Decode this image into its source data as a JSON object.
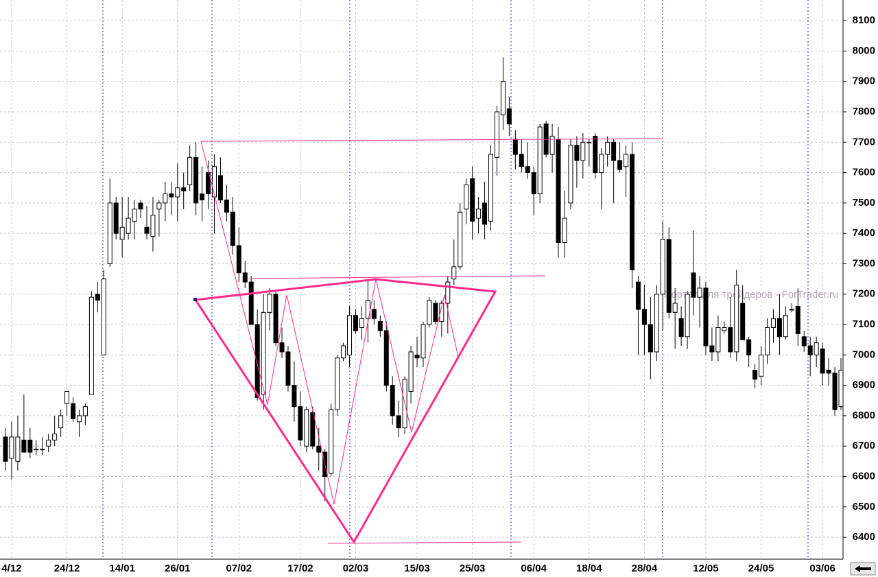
{
  "chart_data": {
    "type": "candlestick",
    "watermark": "Портал для трейдеров - ForTrader.ru",
    "categories": [
      null,
      "4/12",
      null,
      null,
      null,
      null,
      null,
      null,
      null,
      null,
      "24/12",
      null,
      null,
      null,
      null,
      null,
      null,
      null,
      null,
      "14/01",
      null,
      null,
      null,
      null,
      null,
      null,
      null,
      null,
      "26/01",
      null,
      null,
      null,
      null,
      null,
      null,
      null,
      null,
      null,
      "07/02",
      null,
      null,
      null,
      null,
      null,
      null,
      null,
      null,
      null,
      "17/02",
      null,
      null,
      null,
      null,
      null,
      null,
      null,
      null,
      "02/03",
      null,
      null,
      null,
      null,
      null,
      null,
      null,
      null,
      null,
      "15/03",
      null,
      null,
      null,
      null,
      null,
      null,
      null,
      null,
      "25/03",
      null,
      null,
      null,
      null,
      null,
      null,
      null,
      null,
      null,
      "06/04",
      null,
      null,
      null,
      null,
      null,
      null,
      null,
      null,
      "18/04",
      null,
      null,
      null,
      null,
      null,
      null,
      null,
      null,
      "28/04",
      null,
      null,
      null,
      null,
      null,
      null,
      null,
      null,
      null,
      "12/05",
      null,
      null,
      null,
      null,
      null,
      null,
      null,
      null,
      "24/05",
      null,
      null,
      null,
      null,
      null,
      null,
      null,
      null,
      null,
      "03/06",
      null,
      null,
      null
    ],
    "ohlc": [
      [
        6730,
        6760,
        6620,
        6650
      ],
      [
        6660,
        6780,
        6590,
        6730
      ],
      [
        6650,
        6800,
        6620,
        6730
      ],
      [
        6720,
        6870,
        6680,
        6680
      ],
      [
        6720,
        6760,
        6660,
        6680
      ],
      [
        6690,
        6720,
        6670,
        6690
      ],
      [
        6690,
        6730,
        6670,
        6690
      ],
      [
        6700,
        6740,
        6680,
        6720
      ],
      [
        6720,
        6800,
        6700,
        6740
      ],
      [
        6760,
        6820,
        6730,
        6800
      ],
      [
        6840,
        6880,
        6800,
        6880
      ],
      [
        6840,
        6860,
        6780,
        6790
      ],
      [
        6780,
        6820,
        6730,
        6800
      ],
      [
        6800,
        6840,
        6770,
        6830
      ],
      [
        6870,
        7210,
        6870,
        7190
      ],
      [
        7200,
        7240,
        7140,
        7180
      ],
      [
        7000,
        7280,
        7000,
        7250
      ],
      [
        7300,
        7580,
        7290,
        7500
      ],
      [
        7500,
        7520,
        7380,
        7400
      ],
      [
        7380,
        7520,
        7320,
        7420
      ],
      [
        7400,
        7520,
        7380,
        7450
      ],
      [
        7440,
        7510,
        7380,
        7480
      ],
      [
        7500,
        7510,
        7450,
        7480
      ],
      [
        7420,
        7490,
        7380,
        7400
      ],
      [
        7390,
        7520,
        7340,
        7460
      ],
      [
        7480,
        7510,
        7390,
        7500
      ],
      [
        7500,
        7570,
        7440,
        7530
      ],
      [
        7530,
        7570,
        7460,
        7520
      ],
      [
        7520,
        7630,
        7440,
        7550
      ],
      [
        7550,
        7600,
        7480,
        7540
      ],
      [
        7560,
        7690,
        7540,
        7650
      ],
      [
        7650,
        7700,
        7460,
        7500
      ],
      [
        7530,
        7620,
        7440,
        7510
      ],
      [
        7600,
        7640,
        7480,
        7530
      ],
      [
        7520,
        7660,
        7400,
        7620
      ],
      [
        7590,
        7650,
        7500,
        7510
      ],
      [
        7510,
        7560,
        7440,
        7470
      ],
      [
        7470,
        7520,
        7330,
        7360
      ],
      [
        7360,
        7420,
        7240,
        7270
      ],
      [
        7270,
        7310,
        7220,
        7240
      ],
      [
        7240,
        7260,
        7100,
        7100
      ],
      [
        7100,
        7150,
        6850,
        6860
      ],
      [
        6870,
        7200,
        6820,
        7140
      ],
      [
        7140,
        7220,
        7080,
        7200
      ],
      [
        7200,
        7210,
        7030,
        7040
      ],
      [
        7040,
        7090,
        6990,
        7010
      ],
      [
        7010,
        7030,
        6880,
        6900
      ],
      [
        6900,
        6980,
        6780,
        6830
      ],
      [
        6830,
        6880,
        6700,
        6720
      ],
      [
        6700,
        6830,
        6680,
        6820
      ],
      [
        6810,
        6830,
        6690,
        6700
      ],
      [
        6700,
        6760,
        6620,
        6680
      ],
      [
        6680,
        6690,
        6520,
        6600
      ],
      [
        6610,
        6840,
        6600,
        6820
      ],
      [
        6820,
        7000,
        6800,
        6990
      ],
      [
        6990,
        7040,
        6980,
        7030
      ],
      [
        7000,
        7160,
        6960,
        7130
      ],
      [
        7130,
        7150,
        7070,
        7080
      ],
      [
        7090,
        7160,
        7050,
        7120
      ],
      [
        7120,
        7250,
        7040,
        7180
      ],
      [
        7150,
        7180,
        7100,
        7120
      ],
      [
        7110,
        7130,
        7060,
        7080
      ],
      [
        7080,
        7110,
        6880,
        6900
      ],
      [
        6900,
        6930,
        6770,
        6800
      ],
      [
        6800,
        6850,
        6730,
        6760
      ],
      [
        6760,
        6930,
        6740,
        6920
      ],
      [
        6880,
        7030,
        6840,
        7010
      ],
      [
        7000,
        7060,
        6960,
        6990
      ],
      [
        6990,
        7110,
        6960,
        7100
      ],
      [
        7100,
        7190,
        7090,
        7180
      ],
      [
        7170,
        7180,
        7100,
        7110
      ],
      [
        7110,
        7180,
        7060,
        7170
      ],
      [
        7170,
        7260,
        7070,
        7240
      ],
      [
        7250,
        7380,
        7230,
        7290
      ],
      [
        7290,
        7500,
        7280,
        7470
      ],
      [
        7480,
        7580,
        7430,
        7560
      ],
      [
        7580,
        7620,
        7380,
        7440
      ],
      [
        7450,
        7520,
        7400,
        7480
      ],
      [
        7500,
        7570,
        7380,
        7430
      ],
      [
        7440,
        7690,
        7410,
        7660
      ],
      [
        7650,
        7820,
        7590,
        7800
      ],
      [
        7790,
        7980,
        7740,
        7900
      ],
      [
        7810,
        7850,
        7720,
        7760
      ],
      [
        7710,
        7740,
        7610,
        7660
      ],
      [
        7660,
        7710,
        7600,
        7620
      ],
      [
        7620,
        7700,
        7580,
        7600
      ],
      [
        7600,
        7620,
        7460,
        7530
      ],
      [
        7530,
        7760,
        7500,
        7750
      ],
      [
        7760,
        7770,
        7650,
        7660
      ],
      [
        7660,
        7760,
        7600,
        7720
      ],
      [
        7710,
        7750,
        7320,
        7370
      ],
      [
        7370,
        7540,
        7320,
        7450
      ],
      [
        7500,
        7710,
        7480,
        7690
      ],
      [
        7690,
        7720,
        7550,
        7640
      ],
      [
        7640,
        7730,
        7580,
        7700
      ],
      [
        7700,
        7710,
        7620,
        7700
      ],
      [
        7720,
        7730,
        7580,
        7600
      ],
      [
        7600,
        7680,
        7480,
        7660
      ],
      [
        7660,
        7720,
        7620,
        7700
      ],
      [
        7700,
        7710,
        7500,
        7640
      ],
      [
        7640,
        7700,
        7600,
        7610
      ],
      [
        7620,
        7690,
        7520,
        7660
      ],
      [
        7660,
        7700,
        7220,
        7280
      ],
      [
        7240,
        7260,
        7000,
        7150
      ],
      [
        7150,
        7230,
        7000,
        7100
      ],
      [
        7100,
        7190,
        6920,
        7010
      ],
      [
        7010,
        7230,
        6980,
        7200
      ],
      [
        7200,
        7440,
        7080,
        7380
      ],
      [
        7380,
        7420,
        7120,
        7140
      ],
      [
        7140,
        7220,
        7020,
        7170
      ],
      [
        7120,
        7160,
        7030,
        7060
      ],
      [
        7060,
        7210,
        7020,
        7200
      ],
      [
        7270,
        7410,
        7130,
        7190
      ],
      [
        7190,
        7260,
        7090,
        7220
      ],
      [
        7220,
        7240,
        7000,
        7030
      ],
      [
        7030,
        7090,
        6980,
        7010
      ],
      [
        7010,
        7130,
        6980,
        7090
      ],
      [
        7080,
        7110,
        7070,
        7090
      ],
      [
        7090,
        7190,
        6990,
        7010
      ],
      [
        7010,
        7280,
        6980,
        7230
      ],
      [
        7170,
        7230,
        7050,
        7050
      ],
      [
        7050,
        7060,
        6960,
        7000
      ],
      [
        6950,
        6970,
        6890,
        6920
      ],
      [
        6930,
        7030,
        6900,
        7000
      ],
      [
        7000,
        7120,
        6970,
        7090
      ],
      [
        7090,
        7150,
        7040,
        7120
      ],
      [
        7120,
        7200,
        7000,
        7060
      ],
      [
        7060,
        7160,
        7050,
        7130
      ],
      [
        7150,
        7170,
        7140,
        7150
      ],
      [
        7160,
        7220,
        7030,
        7070
      ],
      [
        7060,
        7080,
        7010,
        7030
      ],
      [
        7030,
        7060,
        6930,
        7000
      ],
      [
        7000,
        7060,
        6960,
        7040
      ],
      [
        7020,
        7040,
        6900,
        6940
      ],
      [
        6950,
        6990,
        6900,
        6940
      ],
      [
        6940,
        6960,
        6800,
        6820
      ],
      [
        6830,
        6990,
        6820,
        6950
      ]
    ],
    "ylim": [
      6328,
      8168
    ],
    "yticks": [
      6400,
      6500,
      6600,
      6700,
      6800,
      6900,
      7000,
      7100,
      7200,
      7300,
      7400,
      7500,
      7600,
      7700,
      7800,
      7900,
      8000,
      8100
    ],
    "grid": true,
    "up_color": "#ffffff",
    "down_color": "#000000"
  }
}
